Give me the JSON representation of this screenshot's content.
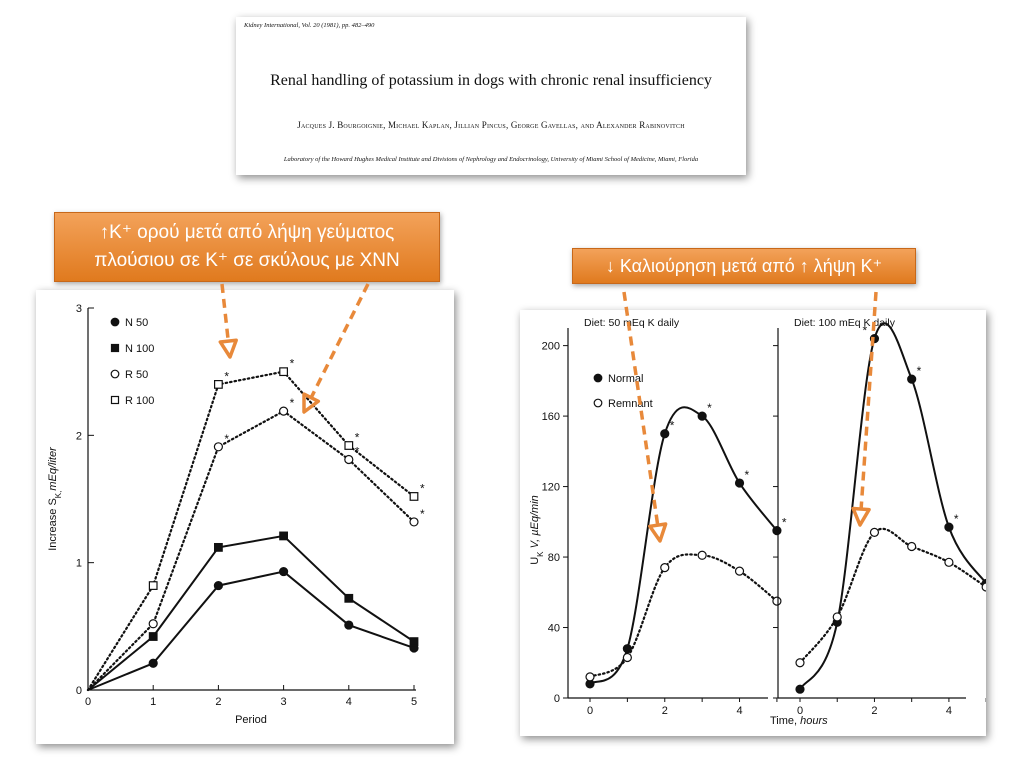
{
  "paper": {
    "citation": "Kidney International, Vol. 20 (1981), pp. 482–490",
    "title": "Renal handling of potassium in dogs with chronic renal insufficiency",
    "authors": "Jacques J. Bourgoignie, Michael Kaplan, Jillian Pincus, George Gavellas, and Alexander Rabinovitch",
    "affiliation": "Laboratory of the Howard Hughes Medical Institute and Divisions of Nephrology and Endocrinology, University of Miami School of Medicine, Miami, Florida"
  },
  "callouts": {
    "left_line1": "↑K⁺ ορού μετά  από λήψη γεύματος",
    "left_line2": "πλούσιου σε K⁺ σε σκύλους με ΧΝΝ",
    "right": "↓ Καλιούρηση μετά από ↑ λήψη K⁺"
  },
  "colors": {
    "callout_bg": "#e8893a",
    "arrow": "#e8893a",
    "ink": "#111111"
  },
  "chart_data": [
    {
      "type": "line",
      "xlabel": "Period",
      "ylabel": "Increase S_K, mEq/liter",
      "xlim": [
        0,
        5
      ],
      "ylim": [
        0,
        3
      ],
      "xticks": [
        "0",
        "1",
        "2",
        "3",
        "4",
        "5"
      ],
      "yticks": [
        "0",
        "1",
        "2",
        "3"
      ],
      "legend_position": "top-left",
      "series": [
        {
          "name": "N 50",
          "marker": "filled-circle",
          "line": "solid",
          "x": [
            0,
            1,
            2,
            3,
            4,
            5
          ],
          "y": [
            0,
            0.21,
            0.82,
            0.93,
            0.51,
            0.33
          ],
          "asterisks": []
        },
        {
          "name": "N 100",
          "marker": "filled-square",
          "line": "solid",
          "x": [
            0,
            1,
            2,
            3,
            4,
            5
          ],
          "y": [
            0,
            0.42,
            1.12,
            1.21,
            0.72,
            0.38
          ],
          "asterisks": []
        },
        {
          "name": "R 50",
          "marker": "open-circle",
          "line": "dotted",
          "x": [
            0,
            1,
            2,
            3,
            4,
            5
          ],
          "y": [
            0,
            0.52,
            1.91,
            2.19,
            1.81,
            1.32
          ],
          "asterisks": [
            2,
            3,
            4,
            5
          ]
        },
        {
          "name": "R 100",
          "marker": "open-square",
          "line": "dotted",
          "x": [
            0,
            1,
            2,
            3,
            4,
            5
          ],
          "y": [
            0,
            0.82,
            2.4,
            2.5,
            1.92,
            1.52
          ],
          "asterisks": [
            2,
            3,
            4,
            5
          ]
        }
      ]
    },
    {
      "type": "line",
      "xlabel": "Time, hours",
      "ylabel": "U_K V, µEq/min",
      "ylim": [
        0,
        210
      ],
      "yticks": [
        "0",
        "40",
        "80",
        "120",
        "160",
        "200"
      ],
      "xticks": [
        "0",
        "2",
        "4"
      ],
      "legend_position": "top-left",
      "legend": [
        {
          "name": "Normal",
          "marker": "filled-circle"
        },
        {
          "name": "Remnant",
          "marker": "open-circle"
        }
      ],
      "panels": [
        {
          "title": "Diet:  50 mEq K daily",
          "xlim": [
            0,
            5
          ],
          "series": [
            {
              "name": "Normal",
              "marker": "filled-circle",
              "line": "solid",
              "x": [
                0,
                1,
                2,
                3,
                4,
                5
              ],
              "y": [
                8,
                28,
                150,
                160,
                122,
                95
              ],
              "asterisks": [
                2,
                3,
                4,
                5
              ]
            },
            {
              "name": "Remnant",
              "marker": "open-circle",
              "line": "dotted",
              "x": [
                0,
                1,
                2,
                3,
                4,
                5
              ],
              "y": [
                12,
                23,
                74,
                81,
                72,
                55
              ],
              "asterisks": []
            }
          ]
        },
        {
          "title": "Diet:  100 mEq K daily",
          "xlim": [
            0,
            5
          ],
          "series": [
            {
              "name": "Normal",
              "marker": "filled-circle",
              "line": "solid",
              "x": [
                0,
                1,
                2,
                3,
                4,
                5
              ],
              "y": [
                5,
                43,
                204,
                181,
                97,
                65
              ],
              "asterisks": [
                2,
                3,
                4
              ]
            },
            {
              "name": "Remnant",
              "marker": "open-circle",
              "line": "dotted",
              "x": [
                0,
                1,
                2,
                3,
                4,
                5
              ],
              "y": [
                20,
                46,
                94,
                86,
                77,
                63
              ],
              "asterisks": []
            }
          ]
        }
      ]
    }
  ]
}
